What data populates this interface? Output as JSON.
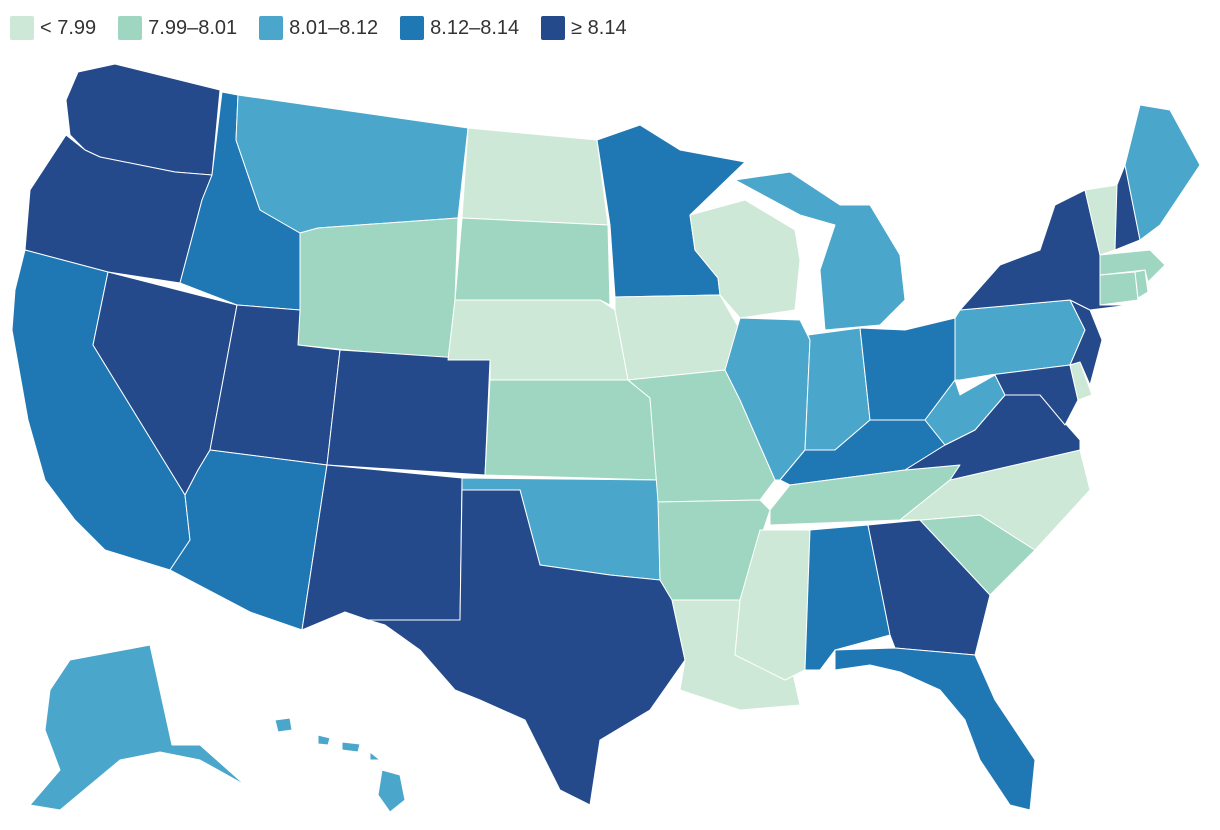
{
  "legend": {
    "items": [
      {
        "label": "< 7.99",
        "color": "#cde8d6"
      },
      {
        "label": "7.99–8.01",
        "color": "#9ed6c2"
      },
      {
        "label": "8.01–8.12",
        "color": "#4aa6cb"
      },
      {
        "label": "8.12–8.14",
        "color": "#1f78b4"
      },
      {
        "label": "≥ 8.14",
        "color": "#244a8c"
      }
    ]
  },
  "states": {
    "WA": 4,
    "OR": 4,
    "CA": 3,
    "NV": 4,
    "ID": 3,
    "MT": 2,
    "WY": 1,
    "UT": 4,
    "AZ": 3,
    "CO": 4,
    "NM": 4,
    "ND": 0,
    "SD": 1,
    "NE": 0,
    "KS": 1,
    "OK": 2,
    "TX": 4,
    "MN": 3,
    "IA": 0,
    "MO": 1,
    "AR": 1,
    "LA": 0,
    "WI": 0,
    "IL": 2,
    "MI": 2,
    "IN": 2,
    "OH": 3,
    "KY": 3,
    "TN": 1,
    "MS": 0,
    "AL": 3,
    "GA": 4,
    "FL": 3,
    "SC": 1,
    "NC": 0,
    "VA": 4,
    "WV": 2,
    "PA": 2,
    "NY": 4,
    "VT": 0,
    "NH": 4,
    "ME": 2,
    "MA": 1,
    "CT": 1,
    "RI": 1,
    "NJ": 4,
    "DE": 0,
    "MD": 4,
    "AK": 2,
    "HI": 2
  }
}
